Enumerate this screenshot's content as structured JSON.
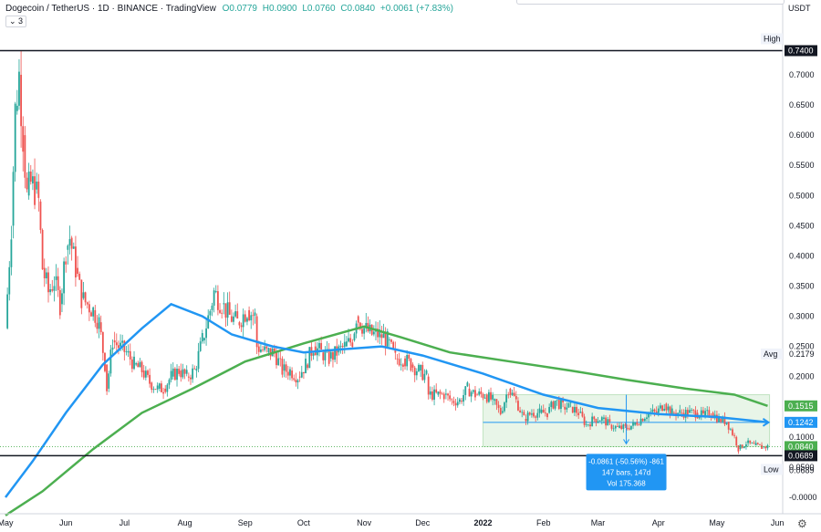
{
  "header": {
    "symbol": "Dogecoin / TetherUS · 1D · BINANCE · TradingView",
    "open": "O0.0779",
    "high": "H0.0900",
    "low": "L0.0760",
    "close": "C0.0840",
    "change": "+0.0061 (+7.83%)",
    "indicator_toggle": "⌄ 3"
  },
  "chart_data": {
    "type": "candlestick",
    "currency": "USDT",
    "y_range": [
      -0.02,
      0.76
    ],
    "y_ticks": [
      "0.7400",
      "0.7000",
      "0.6500",
      "0.6000",
      "0.5500",
      "0.5000",
      "0.4500",
      "0.4000",
      "0.3500",
      "0.3000",
      "0.2500",
      "0.2000",
      "0.1500",
      "0.1000",
      "0.0500",
      "-0.0000"
    ],
    "x_range": [
      "2021-05-01",
      "2022-05-31"
    ],
    "x_ticks": [
      {
        "label": "May",
        "date": "2021-05-01"
      },
      {
        "label": "Jun",
        "date": "2021-06-01"
      },
      {
        "label": "Jul",
        "date": "2021-07-01"
      },
      {
        "label": "Aug",
        "date": "2021-08-01"
      },
      {
        "label": "Sep",
        "date": "2021-09-01"
      },
      {
        "label": "Oct",
        "date": "2021-10-01"
      },
      {
        "label": "Nov",
        "date": "2021-11-01"
      },
      {
        "label": "Dec",
        "date": "2021-12-01"
      },
      {
        "label": "2022",
        "date": "2022-01-01"
      },
      {
        "label": "Feb",
        "date": "2022-02-01"
      },
      {
        "label": "Mar",
        "date": "2022-03-01"
      },
      {
        "label": "Apr",
        "date": "2022-04-01"
      },
      {
        "label": "May",
        "date": "2022-05-01"
      },
      {
        "label": "Jun",
        "date": "2022-06-01"
      }
    ],
    "price_points": [
      {
        "date": "2021-05-01",
        "close": 0.28
      },
      {
        "date": "2021-05-04",
        "close": 0.45
      },
      {
        "date": "2021-05-06",
        "close": 0.64
      },
      {
        "date": "2021-05-08",
        "close": 0.7
      },
      {
        "date": "2021-05-10",
        "close": 0.6
      },
      {
        "date": "2021-05-12",
        "close": 0.5
      },
      {
        "date": "2021-05-14",
        "close": 0.52
      },
      {
        "date": "2021-05-16",
        "close": 0.51
      },
      {
        "date": "2021-05-18",
        "close": 0.49
      },
      {
        "date": "2021-05-20",
        "close": 0.38
      },
      {
        "date": "2021-05-23",
        "close": 0.34
      },
      {
        "date": "2021-05-26",
        "close": 0.36
      },
      {
        "date": "2021-05-29",
        "close": 0.32
      },
      {
        "date": "2021-06-01",
        "close": 0.41
      },
      {
        "date": "2021-06-03",
        "close": 0.43
      },
      {
        "date": "2021-06-06",
        "close": 0.38
      },
      {
        "date": "2021-06-09",
        "close": 0.33
      },
      {
        "date": "2021-06-12",
        "close": 0.32
      },
      {
        "date": "2021-06-15",
        "close": 0.31
      },
      {
        "date": "2021-06-18",
        "close": 0.29
      },
      {
        "date": "2021-06-21",
        "close": 0.22
      },
      {
        "date": "2021-06-22",
        "close": 0.18
      },
      {
        "date": "2021-06-25",
        "close": 0.26
      },
      {
        "date": "2021-06-28",
        "close": 0.25
      },
      {
        "date": "2021-07-02",
        "close": 0.24
      },
      {
        "date": "2021-07-06",
        "close": 0.22
      },
      {
        "date": "2021-07-10",
        "close": 0.21
      },
      {
        "date": "2021-07-14",
        "close": 0.19
      },
      {
        "date": "2021-07-18",
        "close": 0.18
      },
      {
        "date": "2021-07-21",
        "close": 0.18
      },
      {
        "date": "2021-07-25",
        "close": 0.2
      },
      {
        "date": "2021-07-29",
        "close": 0.21
      },
      {
        "date": "2021-08-02",
        "close": 0.2
      },
      {
        "date": "2021-08-06",
        "close": 0.21
      },
      {
        "date": "2021-08-10",
        "close": 0.26
      },
      {
        "date": "2021-08-14",
        "close": 0.31
      },
      {
        "date": "2021-08-16",
        "close": 0.34
      },
      {
        "date": "2021-08-20",
        "close": 0.32
      },
      {
        "date": "2021-08-24",
        "close": 0.3
      },
      {
        "date": "2021-08-28",
        "close": 0.29
      },
      {
        "date": "2021-09-02",
        "close": 0.31
      },
      {
        "date": "2021-09-06",
        "close": 0.3
      },
      {
        "date": "2021-09-07",
        "close": 0.25
      },
      {
        "date": "2021-09-12",
        "close": 0.24
      },
      {
        "date": "2021-09-16",
        "close": 0.24
      },
      {
        "date": "2021-09-20",
        "close": 0.21
      },
      {
        "date": "2021-09-24",
        "close": 0.21
      },
      {
        "date": "2021-09-28",
        "close": 0.2
      },
      {
        "date": "2021-10-02",
        "close": 0.22
      },
      {
        "date": "2021-10-06",
        "close": 0.25
      },
      {
        "date": "2021-10-10",
        "close": 0.24
      },
      {
        "date": "2021-10-14",
        "close": 0.23
      },
      {
        "date": "2021-10-18",
        "close": 0.24
      },
      {
        "date": "2021-10-22",
        "close": 0.25
      },
      {
        "date": "2021-10-26",
        "close": 0.26
      },
      {
        "date": "2021-10-28",
        "close": 0.3
      },
      {
        "date": "2021-11-01",
        "close": 0.28
      },
      {
        "date": "2021-11-05",
        "close": 0.27
      },
      {
        "date": "2021-11-09",
        "close": 0.27
      },
      {
        "date": "2021-11-13",
        "close": 0.26
      },
      {
        "date": "2021-11-17",
        "close": 0.23
      },
      {
        "date": "2021-11-21",
        "close": 0.23
      },
      {
        "date": "2021-11-25",
        "close": 0.22
      },
      {
        "date": "2021-11-29",
        "close": 0.21
      },
      {
        "date": "2021-12-03",
        "close": 0.2
      },
      {
        "date": "2021-12-04",
        "close": 0.17
      },
      {
        "date": "2021-12-08",
        "close": 0.17
      },
      {
        "date": "2021-12-12",
        "close": 0.17
      },
      {
        "date": "2021-12-16",
        "close": 0.16
      },
      {
        "date": "2021-12-20",
        "close": 0.16
      },
      {
        "date": "2021-12-24",
        "close": 0.18
      },
      {
        "date": "2021-12-28",
        "close": 0.17
      },
      {
        "date": "2022-01-02",
        "close": 0.17
      },
      {
        "date": "2022-01-06",
        "close": 0.16
      },
      {
        "date": "2022-01-10",
        "close": 0.14
      },
      {
        "date": "2022-01-14",
        "close": 0.18
      },
      {
        "date": "2022-01-18",
        "close": 0.16
      },
      {
        "date": "2022-01-22",
        "close": 0.13
      },
      {
        "date": "2022-01-26",
        "close": 0.14
      },
      {
        "date": "2022-01-30",
        "close": 0.14
      },
      {
        "date": "2022-02-03",
        "close": 0.14
      },
      {
        "date": "2022-02-07",
        "close": 0.16
      },
      {
        "date": "2022-02-11",
        "close": 0.15
      },
      {
        "date": "2022-02-15",
        "close": 0.15
      },
      {
        "date": "2022-02-19",
        "close": 0.14
      },
      {
        "date": "2022-02-23",
        "close": 0.12
      },
      {
        "date": "2022-02-27",
        "close": 0.13
      },
      {
        "date": "2022-03-03",
        "close": 0.13
      },
      {
        "date": "2022-03-07",
        "close": 0.12
      },
      {
        "date": "2022-03-11",
        "close": 0.115
      },
      {
        "date": "2022-03-15",
        "close": 0.115
      },
      {
        "date": "2022-03-19",
        "close": 0.12
      },
      {
        "date": "2022-03-23",
        "close": 0.13
      },
      {
        "date": "2022-03-27",
        "close": 0.14
      },
      {
        "date": "2022-03-31",
        "close": 0.14
      },
      {
        "date": "2022-04-04",
        "close": 0.155
      },
      {
        "date": "2022-04-08",
        "close": 0.14
      },
      {
        "date": "2022-04-12",
        "close": 0.14
      },
      {
        "date": "2022-04-16",
        "close": 0.14
      },
      {
        "date": "2022-04-20",
        "close": 0.14
      },
      {
        "date": "2022-04-24",
        "close": 0.135
      },
      {
        "date": "2022-04-28",
        "close": 0.14
      },
      {
        "date": "2022-05-02",
        "close": 0.13
      },
      {
        "date": "2022-05-06",
        "close": 0.125
      },
      {
        "date": "2022-05-10",
        "close": 0.1
      },
      {
        "date": "2022-05-12",
        "close": 0.08
      },
      {
        "date": "2022-05-16",
        "close": 0.09
      },
      {
        "date": "2022-05-20",
        "close": 0.086
      },
      {
        "date": "2022-05-24",
        "close": 0.083
      },
      {
        "date": "2022-05-27",
        "close": 0.084
      }
    ],
    "ma_blue": [
      {
        "date": "2021-05-01",
        "value": 0.0
      },
      {
        "date": "2021-05-15",
        "value": 0.06
      },
      {
        "date": "2021-06-01",
        "value": 0.14
      },
      {
        "date": "2021-06-20",
        "value": 0.22
      },
      {
        "date": "2021-07-10",
        "value": 0.28
      },
      {
        "date": "2021-07-25",
        "value": 0.32
      },
      {
        "date": "2021-08-10",
        "value": 0.3
      },
      {
        "date": "2021-08-25",
        "value": 0.27
      },
      {
        "date": "2021-09-15",
        "value": 0.25
      },
      {
        "date": "2021-10-01",
        "value": 0.24
      },
      {
        "date": "2021-10-20",
        "value": 0.245
      },
      {
        "date": "2021-11-10",
        "value": 0.25
      },
      {
        "date": "2021-12-01",
        "value": 0.235
      },
      {
        "date": "2022-01-01",
        "value": 0.205
      },
      {
        "date": "2022-02-01",
        "value": 0.17
      },
      {
        "date": "2022-03-01",
        "value": 0.148
      },
      {
        "date": "2022-04-01",
        "value": 0.138
      },
      {
        "date": "2022-05-01",
        "value": 0.133
      },
      {
        "date": "2022-05-27",
        "value": 0.1242
      }
    ],
    "ma_green": [
      {
        "date": "2021-05-01",
        "value": -0.03
      },
      {
        "date": "2021-05-20",
        "value": 0.01
      },
      {
        "date": "2021-06-15",
        "value": 0.08
      },
      {
        "date": "2021-07-10",
        "value": 0.14
      },
      {
        "date": "2021-08-05",
        "value": 0.18
      },
      {
        "date": "2021-09-01",
        "value": 0.225
      },
      {
        "date": "2021-10-01",
        "value": 0.255
      },
      {
        "date": "2021-11-01",
        "value": 0.283
      },
      {
        "date": "2021-11-20",
        "value": 0.265
      },
      {
        "date": "2021-12-15",
        "value": 0.24
      },
      {
        "date": "2022-01-15",
        "value": 0.225
      },
      {
        "date": "2022-02-15",
        "value": 0.21
      },
      {
        "date": "2022-03-15",
        "value": 0.195
      },
      {
        "date": "2022-04-15",
        "value": 0.18
      },
      {
        "date": "2022-05-10",
        "value": 0.17
      },
      {
        "date": "2022-05-27",
        "value": 0.1515
      }
    ],
    "horizontal_lines": [
      {
        "name": "high",
        "value": 0.74,
        "label": "0.7400"
      },
      {
        "name": "low",
        "value": 0.0689,
        "label": "0.0689"
      }
    ],
    "price_labels": [
      {
        "name": "high-tag",
        "text": "High",
        "value": 0.74
      },
      {
        "name": "high-value",
        "text": "0.7400",
        "value": 0.74
      },
      {
        "name": "avg-tag",
        "text": "Avg",
        "value": 0.2179
      },
      {
        "name": "avg-value",
        "text": "0.2179",
        "value": 0.2179
      },
      {
        "name": "ma-green-value",
        "text": "0.1515",
        "value": 0.1515,
        "color": "#4caf50"
      },
      {
        "name": "ma-blue-value",
        "text": "0.1242",
        "value": 0.1242,
        "color": "#2196f3"
      },
      {
        "name": "last-price",
        "text": "0.0840",
        "value": 0.084,
        "color": "#4caf50"
      },
      {
        "name": "low-value",
        "text": "0.0689",
        "value": 0.0689
      },
      {
        "name": "low-tag",
        "text": "Low",
        "value": 0.0689
      }
    ],
    "measure": {
      "start_date": "2022-01-01",
      "end_date": "2022-05-28",
      "top": 0.17,
      "bottom": 0.084,
      "mid": 0.1242,
      "line1": "-0.0861 (-50.56%) -861",
      "line2": "147 bars, 147d",
      "line3": "Vol 175.368"
    },
    "colors": {
      "up": "#26a69a",
      "down": "#ef5350",
      "ma_blue": "#2196f3",
      "ma_green": "#4caf50",
      "axis": "#131722"
    }
  }
}
